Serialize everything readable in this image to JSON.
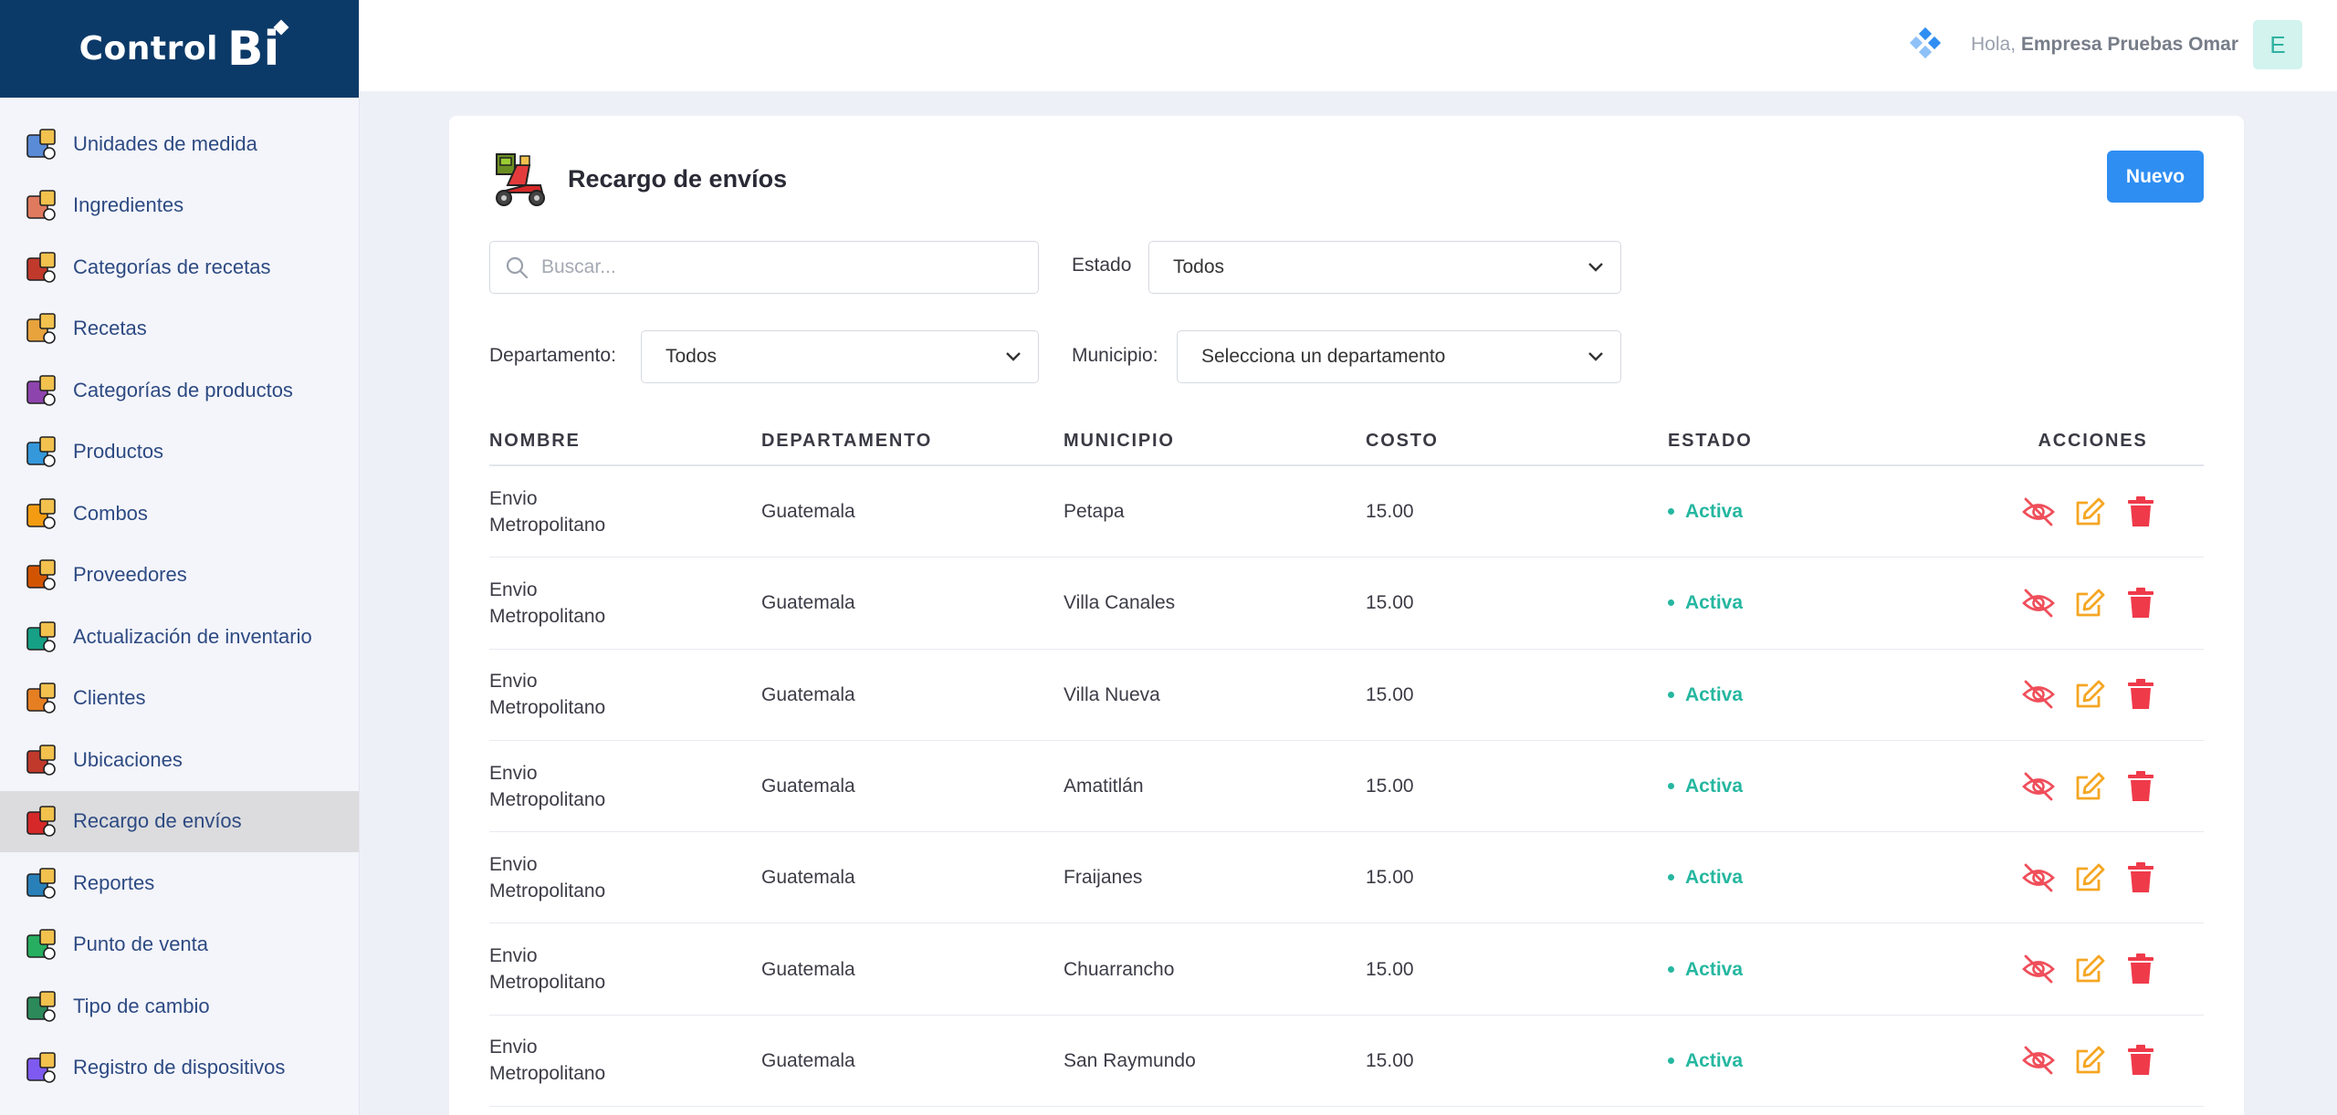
{
  "brand": {
    "text": "Control",
    "bi": "Bi"
  },
  "sidebar": {
    "items": [
      {
        "label": "Unidades de medida",
        "icon": "measure-units-icon"
      },
      {
        "label": "Ingredientes",
        "icon": "ingredients-icon"
      },
      {
        "label": "Categorías de recetas",
        "icon": "recipe-categories-icon"
      },
      {
        "label": "Recetas",
        "icon": "recipes-icon"
      },
      {
        "label": "Categorías de productos",
        "icon": "product-categories-icon"
      },
      {
        "label": "Productos",
        "icon": "products-icon"
      },
      {
        "label": "Combos",
        "icon": "combos-icon"
      },
      {
        "label": "Proveedores",
        "icon": "suppliers-icon"
      },
      {
        "label": "Actualización de inventario",
        "icon": "inventory-update-icon"
      },
      {
        "label": "Clientes",
        "icon": "clients-icon"
      },
      {
        "label": "Ubicaciones",
        "icon": "locations-icon"
      },
      {
        "label": "Recargo de envíos",
        "icon": "delivery-scooter-icon",
        "active": true
      },
      {
        "label": "Reportes",
        "icon": "reports-icon"
      },
      {
        "label": "Punto de venta",
        "icon": "pos-icon"
      },
      {
        "label": "Tipo de cambio",
        "icon": "exchange-rate-icon"
      },
      {
        "label": "Registro de dispositivos",
        "icon": "devices-icon"
      }
    ]
  },
  "header": {
    "greeting": "Hola,",
    "user_name": "Empresa Pruebas Omar",
    "avatar_letter": "E"
  },
  "page": {
    "title": "Recargo de envíos",
    "new_button": "Nuevo"
  },
  "filters": {
    "search_placeholder": "Buscar...",
    "estado_label": "Estado",
    "estado_value": "Todos",
    "departamento_label": "Departamento:",
    "departamento_value": "Todos",
    "municipio_label": "Municipio:",
    "municipio_value": "Selecciona un departamento"
  },
  "table": {
    "columns": [
      "NOMBRE",
      "DEPARTAMENTO",
      "MUNICIPIO",
      "COSTO",
      "ESTADO",
      "ACCIONES"
    ],
    "rows": [
      {
        "nombre": "Envio Metropolitano",
        "departamento": "Guatemala",
        "municipio": "Petapa",
        "costo": "15.00",
        "estado": "Activa"
      },
      {
        "nombre": "Envio Metropolitano",
        "departamento": "Guatemala",
        "municipio": "Villa Canales",
        "costo": "15.00",
        "estado": "Activa"
      },
      {
        "nombre": "Envio Metropolitano",
        "departamento": "Guatemala",
        "municipio": "Villa Nueva",
        "costo": "15.00",
        "estado": "Activa"
      },
      {
        "nombre": "Envio Metropolitano",
        "departamento": "Guatemala",
        "municipio": "Amatitlán",
        "costo": "15.00",
        "estado": "Activa"
      },
      {
        "nombre": "Envio Metropolitano",
        "departamento": "Guatemala",
        "municipio": "Fraijanes",
        "costo": "15.00",
        "estado": "Activa"
      },
      {
        "nombre": "Envio Metropolitano",
        "departamento": "Guatemala",
        "municipio": "Chuarrancho",
        "costo": "15.00",
        "estado": "Activa"
      },
      {
        "nombre": "Envio Metropolitano",
        "departamento": "Guatemala",
        "municipio": "San Raymundo",
        "costo": "15.00",
        "estado": "Activa"
      }
    ]
  },
  "colors": {
    "brand_navy": "#0c3a68",
    "accent_blue": "#2f8ef2",
    "status_green": "#25b7a0",
    "hide_red": "#ef4e5a",
    "edit_orange": "#f5a623",
    "delete_red": "#ef3a4a"
  }
}
